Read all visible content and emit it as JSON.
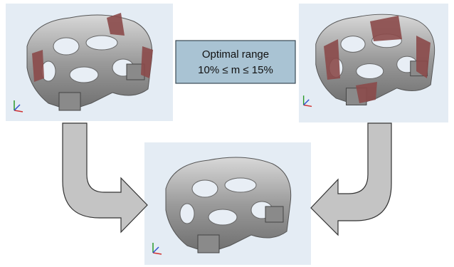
{
  "label_box": {
    "title": "Optimal range",
    "range": "10% ≤ m ≤ 15%"
  }
}
